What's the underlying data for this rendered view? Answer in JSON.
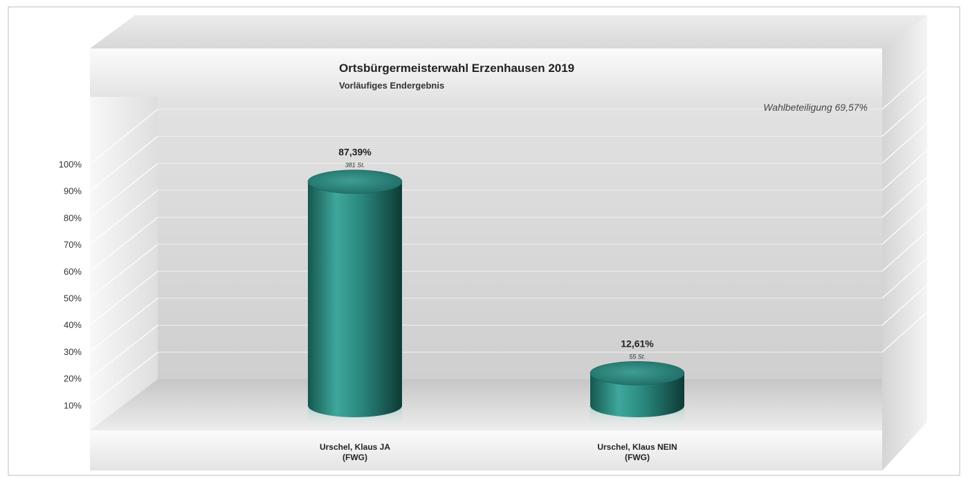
{
  "chart_data": {
    "type": "bar",
    "title": "Ortsbürgermeisterwahl Erzenhausen 2019",
    "subtitle": "Vorläufiges Endergebnis",
    "annotation": "Wahlbeteiligung 69,57%",
    "ylim": [
      0,
      100
    ],
    "ticks": [
      10,
      20,
      30,
      40,
      50,
      60,
      70,
      80,
      90,
      100
    ],
    "tick_labels": [
      "10%",
      "20%",
      "30%",
      "40%",
      "50%",
      "60%",
      "70%",
      "80%",
      "90%",
      "100%"
    ],
    "grid": true,
    "categories": [
      [
        "Urschel, Klaus JA",
        "(FWG)"
      ],
      [
        "Urschel, Klaus NEIN",
        "(FWG)"
      ]
    ],
    "values": [
      87.39,
      12.61
    ],
    "value_labels": [
      "87,39%",
      "12,61%"
    ],
    "vote_labels": [
      "381 St.",
      "55 St."
    ],
    "bar_color": "#2a8a80"
  }
}
